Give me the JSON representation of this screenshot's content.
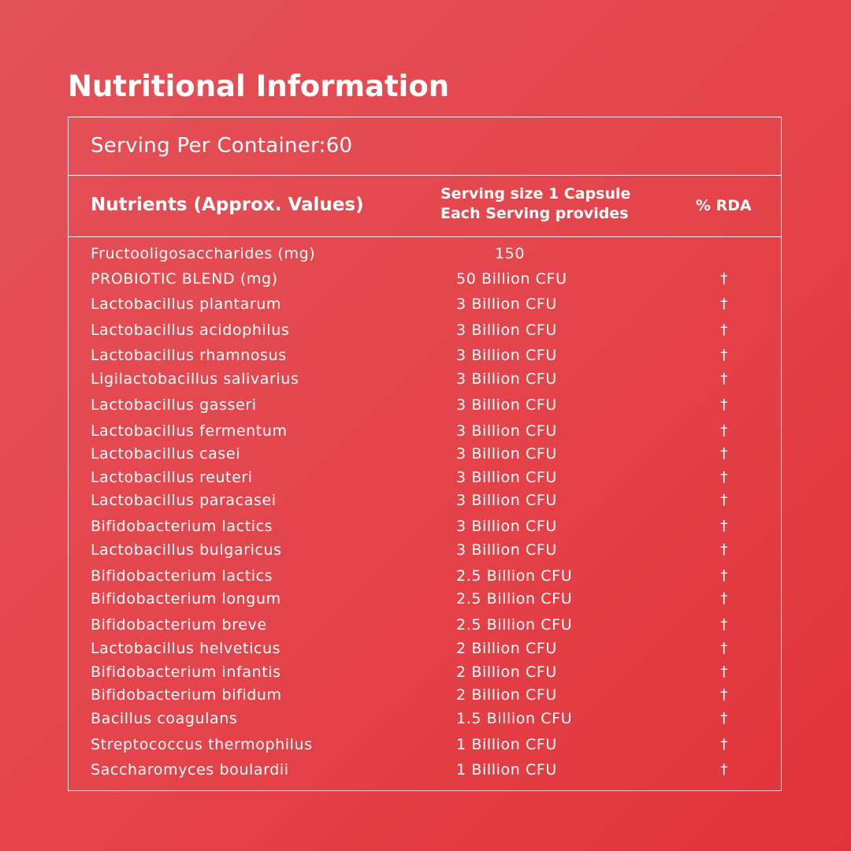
{
  "title": "Nutritional Information",
  "serving": "Serving Per Container:60",
  "header": {
    "nutrients": "Nutrients (Approx. Values)",
    "serving_line1": "Serving size 1 Capsule",
    "serving_line2": "Each Serving provides",
    "rda": "% RDA"
  },
  "rows": [
    {
      "name": "Fructooligosaccharides (mg)",
      "amount": "150",
      "rda": ""
    },
    {
      "name": "PROBIOTIC BLEND (mg)",
      "amount": "50 Billion CFU",
      "rda": "†"
    },
    {
      "name": "Lactobacillus plantarum",
      "amount": "3 Billion CFU",
      "rda": "†"
    },
    {
      "name": "Lactobacillus acidophilus",
      "amount": "3 Billion CFU",
      "rda": "†"
    },
    {
      "name": "Lactobacillus rhamnosus",
      "amount": "3 Billion CFU",
      "rda": "†"
    },
    {
      "name": "Ligilactobacillus salivarius",
      "amount": "3 Billion CFU",
      "rda": "†"
    },
    {
      "name": "Lactobacillus gasseri",
      "amount": "3 Billion CFU",
      "rda": "†"
    },
    {
      "name": "Lactobacillus fermentum",
      "amount": "3 Billion CFU",
      "rda": "†"
    },
    {
      "name": "Lactobacillus casei",
      "amount": "3 Billion CFU",
      "rda": "†"
    },
    {
      "name": "Lactobacillus reuteri",
      "amount": "3 Billion CFU",
      "rda": "†"
    },
    {
      "name": "Lactobacillus paracasei",
      "amount": "3 Billion CFU",
      "rda": "†"
    },
    {
      "name": "Bifidobacterium lactics",
      "amount": "3 Billion CFU",
      "rda": "†"
    },
    {
      "name": "Lactobacillus bulgaricus",
      "amount": "3 Billion CFU",
      "rda": "†"
    },
    {
      "name": "Bifidobacterium lactics",
      "amount": "2.5 Billion CFU",
      "rda": "†"
    },
    {
      "name": "Bifidobacterium longum",
      "amount": "2.5 Billion CFU",
      "rda": "†"
    },
    {
      "name": "Bifidobacterium breve",
      "amount": "2.5 Billion CFU",
      "rda": "†"
    },
    {
      "name": "Lactobacillus helveticus",
      "amount": "2 Billion CFU",
      "rda": "†"
    },
    {
      "name": "Bifidobacterium infantis",
      "amount": "2 Billion CFU",
      "rda": "†"
    },
    {
      "name": "Bifidobacterium bifidum",
      "amount": "2 Billion CFU",
      "rda": "†"
    },
    {
      "name": "Bacillus coagulans",
      "amount": "1.5 Billion CFU",
      "rda": "†"
    },
    {
      "name": "Streptococcus thermophilus",
      "amount": "1 Billion CFU",
      "rda": "†"
    },
    {
      "name": "Saccharomyces boulardii",
      "amount": "1 Billion CFU",
      "rda": "†"
    }
  ]
}
